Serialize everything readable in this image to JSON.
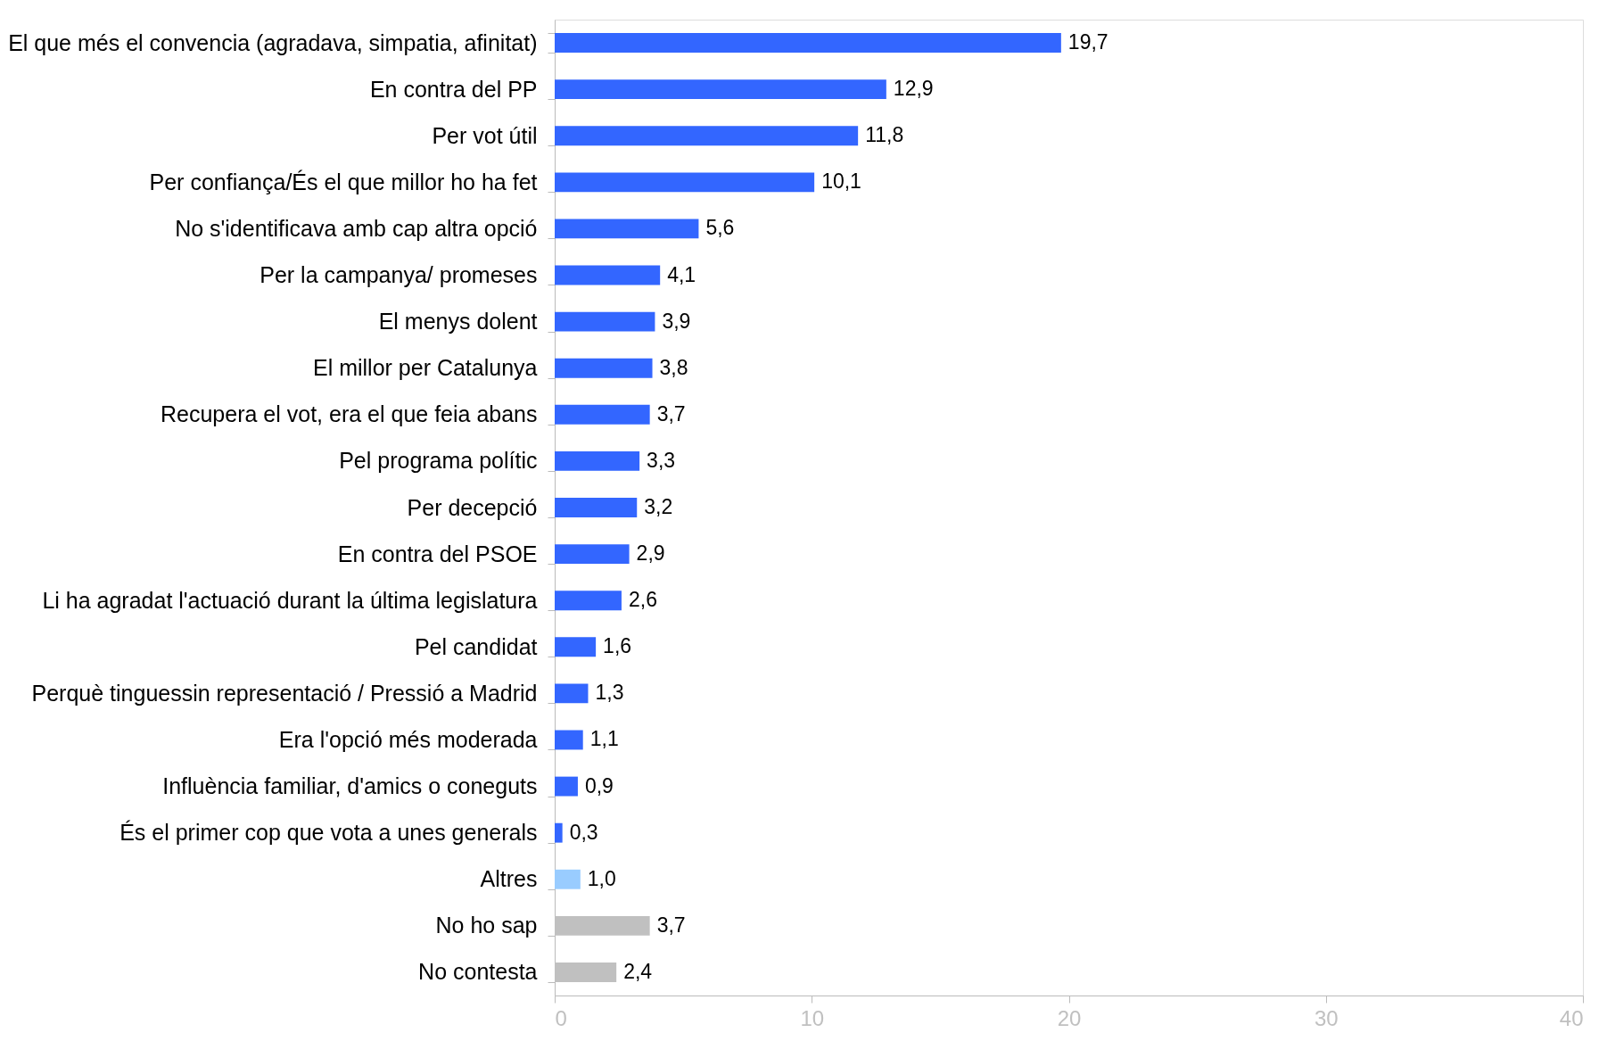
{
  "chart_data": {
    "type": "bar",
    "orientation": "horizontal",
    "categories": [
      "El que més el convencia (agradava, simpatia, afinitat)",
      "En contra del PP",
      "Per vot útil",
      "Per confiança/És el que millor ho ha fet",
      "No s'identificava amb cap altra opció",
      "Per la campanya/ promeses",
      "El menys dolent",
      "El millor per Catalunya",
      "Recupera el vot, era el que feia abans",
      "Pel programa polític",
      "Per decepció",
      "En contra del PSOE",
      "Li ha agradat  l'actuació durant la última legislatura",
      "Pel candidat",
      "Perquè tinguessin representació / Pressió a Madrid",
      "Era l'opció més moderada",
      "Influència familiar, d'amics o coneguts",
      "És el primer cop que vota a unes generals",
      "Altres",
      "No ho sap",
      "No contesta"
    ],
    "values": [
      19.7,
      12.9,
      11.8,
      10.1,
      5.6,
      4.1,
      3.9,
      3.8,
      3.7,
      3.3,
      3.2,
      2.9,
      2.6,
      1.6,
      1.3,
      1.1,
      0.9,
      0.3,
      1.0,
      3.7,
      2.4
    ],
    "value_labels": [
      "19,7",
      "12,9",
      "11,8",
      "10,1",
      "5,6",
      "4,1",
      "3,9",
      "3,8",
      "3,7",
      "3,3",
      "3,2",
      "2,9",
      "2,6",
      "1,6",
      "1,3",
      "1,1",
      "0,9",
      "0,3",
      "1,0",
      "3,7",
      "2,4"
    ],
    "colors": [
      "#3366ff",
      "#3366ff",
      "#3366ff",
      "#3366ff",
      "#3366ff",
      "#3366ff",
      "#3366ff",
      "#3366ff",
      "#3366ff",
      "#3366ff",
      "#3366ff",
      "#3366ff",
      "#3366ff",
      "#3366ff",
      "#3366ff",
      "#3366ff",
      "#3366ff",
      "#3366ff",
      "#99ccff",
      "#c0c0c0",
      "#c0c0c0"
    ],
    "xlim": [
      0,
      40
    ],
    "xticks": [
      0,
      10,
      20,
      30,
      40
    ],
    "grid": false,
    "legend": false
  }
}
